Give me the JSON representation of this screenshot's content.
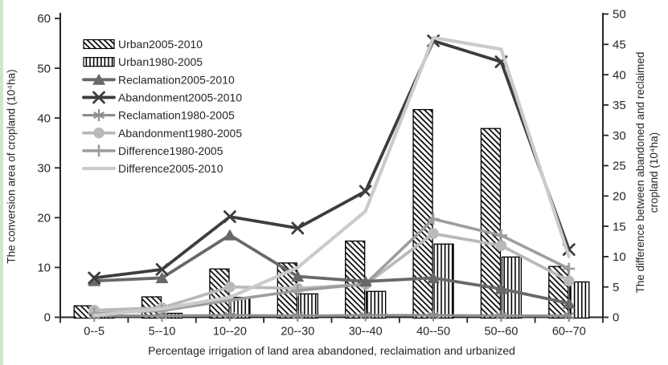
{
  "figure": {
    "background": "#ffffff",
    "frame_border_color": "#cde7cd"
  },
  "colors": {
    "axis": "#262626",
    "text": "#262626",
    "bar_fill": "#ffffff",
    "bar_outline": "#000000"
  },
  "chart_data": {
    "type": "combo",
    "categories": [
      "0--5",
      "5--10",
      "10--20",
      "20--30",
      "30--40",
      "40--50",
      "50--60",
      "60--70"
    ],
    "x_axis": {
      "title": "Percentage irrigation of land area abandoned, reclaimation and urbanized"
    },
    "left_axis": {
      "title": "The conversion area of cropland (10⁴ha)",
      "min": 0,
      "max": 60,
      "step": 10,
      "ticks": [
        0,
        10,
        20,
        30,
        40,
        50,
        60
      ]
    },
    "right_axis": {
      "title": "The difference between abandoned and reclaimed cropland (10⁴ha)",
      "min": 0,
      "max": 50,
      "step": 5,
      "ticks": [
        0,
        5,
        10,
        15,
        20,
        25,
        30,
        35,
        40,
        45,
        50
      ]
    },
    "bar_series": [
      {
        "name": "Urban2005-2010",
        "slug": "urban-2005-2010",
        "axis": "left",
        "pattern": "diagonal-hatch",
        "values": [
          2.3,
          4.1,
          9.7,
          10.9,
          15.3,
          41.7,
          37.9,
          10.2
        ]
      },
      {
        "name": "Urban1980-2005",
        "slug": "urban-1980-2005",
        "axis": "left",
        "pattern": "vertical-hatch",
        "values": [
          0.6,
          0.8,
          4.0,
          4.7,
          5.2,
          14.7,
          12.1,
          7.1
        ]
      }
    ],
    "line_series": [
      {
        "name": "Reclamation2005-2010",
        "slug": "reclamation-2005-2010",
        "axis": "left",
        "marker": "triangle",
        "color": "#686868",
        "width": 3.8,
        "values": [
          7.3,
          7.9,
          16.5,
          8.2,
          7.2,
          7.9,
          5.7,
          2.8
        ]
      },
      {
        "name": "Abandonment2005-2010",
        "slug": "abandonment-2005-2010",
        "axis": "left",
        "marker": "x",
        "color": "#3d3d3d",
        "width": 3.8,
        "values": [
          7.9,
          9.6,
          20.2,
          17.9,
          25.3,
          55.5,
          51.3,
          13.6
        ]
      },
      {
        "name": "Reclamation1980-2005",
        "slug": "reclamation-1980-2005",
        "axis": "left",
        "marker": "asterisk",
        "color": "#8f8f8f",
        "width": 3.2,
        "values": [
          0.3,
          0.3,
          0.4,
          0.3,
          0.4,
          0.4,
          0.3,
          0.3
        ]
      },
      {
        "name": "Abandonment1980-2005",
        "slug": "abandonment-1980-2005",
        "axis": "left",
        "marker": "circle",
        "color": "#b9b9b9",
        "width": 3.8,
        "values": [
          1.4,
          1.9,
          6.1,
          5.8,
          6.6,
          16.8,
          14.4,
          7.3
        ]
      },
      {
        "name": "Difference1980-2005",
        "slug": "difference-1980-2005",
        "axis": "right",
        "marker": "plus",
        "color": "#9d9d9d",
        "width": 3.6,
        "values": [
          0.6,
          1.1,
          2.8,
          4.4,
          5.5,
          16.2,
          13.5,
          8.0
        ]
      },
      {
        "name": "Difference2005-2010",
        "slug": "difference-2005-2010",
        "axis": "right",
        "marker": "none",
        "color": "#cbcbcb",
        "width": 4.2,
        "values": [
          0.3,
          1.4,
          3.3,
          8.2,
          17.5,
          46.1,
          44.2,
          10.0
        ]
      }
    ],
    "legend_position": "upper-left-inside",
    "grid": false
  }
}
